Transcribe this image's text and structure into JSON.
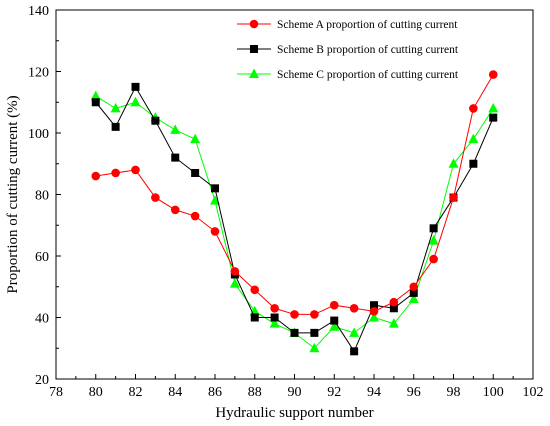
{
  "chart_data": {
    "type": "line",
    "xlabel": "Hydraulic support number",
    "ylabel": "Proportion of cutting current (%)",
    "xlim": [
      78,
      102
    ],
    "ylim": [
      20,
      140
    ],
    "xticks": [
      78,
      80,
      82,
      84,
      86,
      88,
      90,
      92,
      94,
      96,
      98,
      100,
      102
    ],
    "yticks": [
      20,
      40,
      60,
      80,
      100,
      120,
      140
    ],
    "x": [
      80,
      81,
      82,
      83,
      84,
      85,
      86,
      87,
      88,
      89,
      90,
      91,
      92,
      93,
      94,
      95,
      96,
      97,
      98,
      99,
      100
    ],
    "grid": false,
    "legend_position": "top-right",
    "series": [
      {
        "name": "Scheme A proportion of cutting current",
        "color": "#ff0000",
        "marker": "circle",
        "values": [
          86,
          87,
          88,
          79,
          75,
          73,
          68,
          55,
          49,
          43,
          41,
          41,
          44,
          43,
          42,
          45,
          50,
          59,
          79,
          108,
          119
        ]
      },
      {
        "name": "Scheme B proportion of cutting current",
        "color": "#000000",
        "marker": "square",
        "values": [
          110,
          102,
          115,
          104,
          92,
          87,
          82,
          54,
          40,
          40,
          35,
          35,
          39,
          29,
          44,
          43,
          48,
          69,
          79,
          90,
          105
        ]
      },
      {
        "name": "Scheme C proportion of cutting current",
        "color": "#00ff00",
        "marker": "triangle",
        "values": [
          112,
          108,
          110,
          105,
          101,
          98,
          78,
          51,
          42,
          38,
          35,
          30,
          37,
          35,
          40,
          38,
          46,
          65,
          90,
          98,
          108
        ]
      }
    ]
  }
}
